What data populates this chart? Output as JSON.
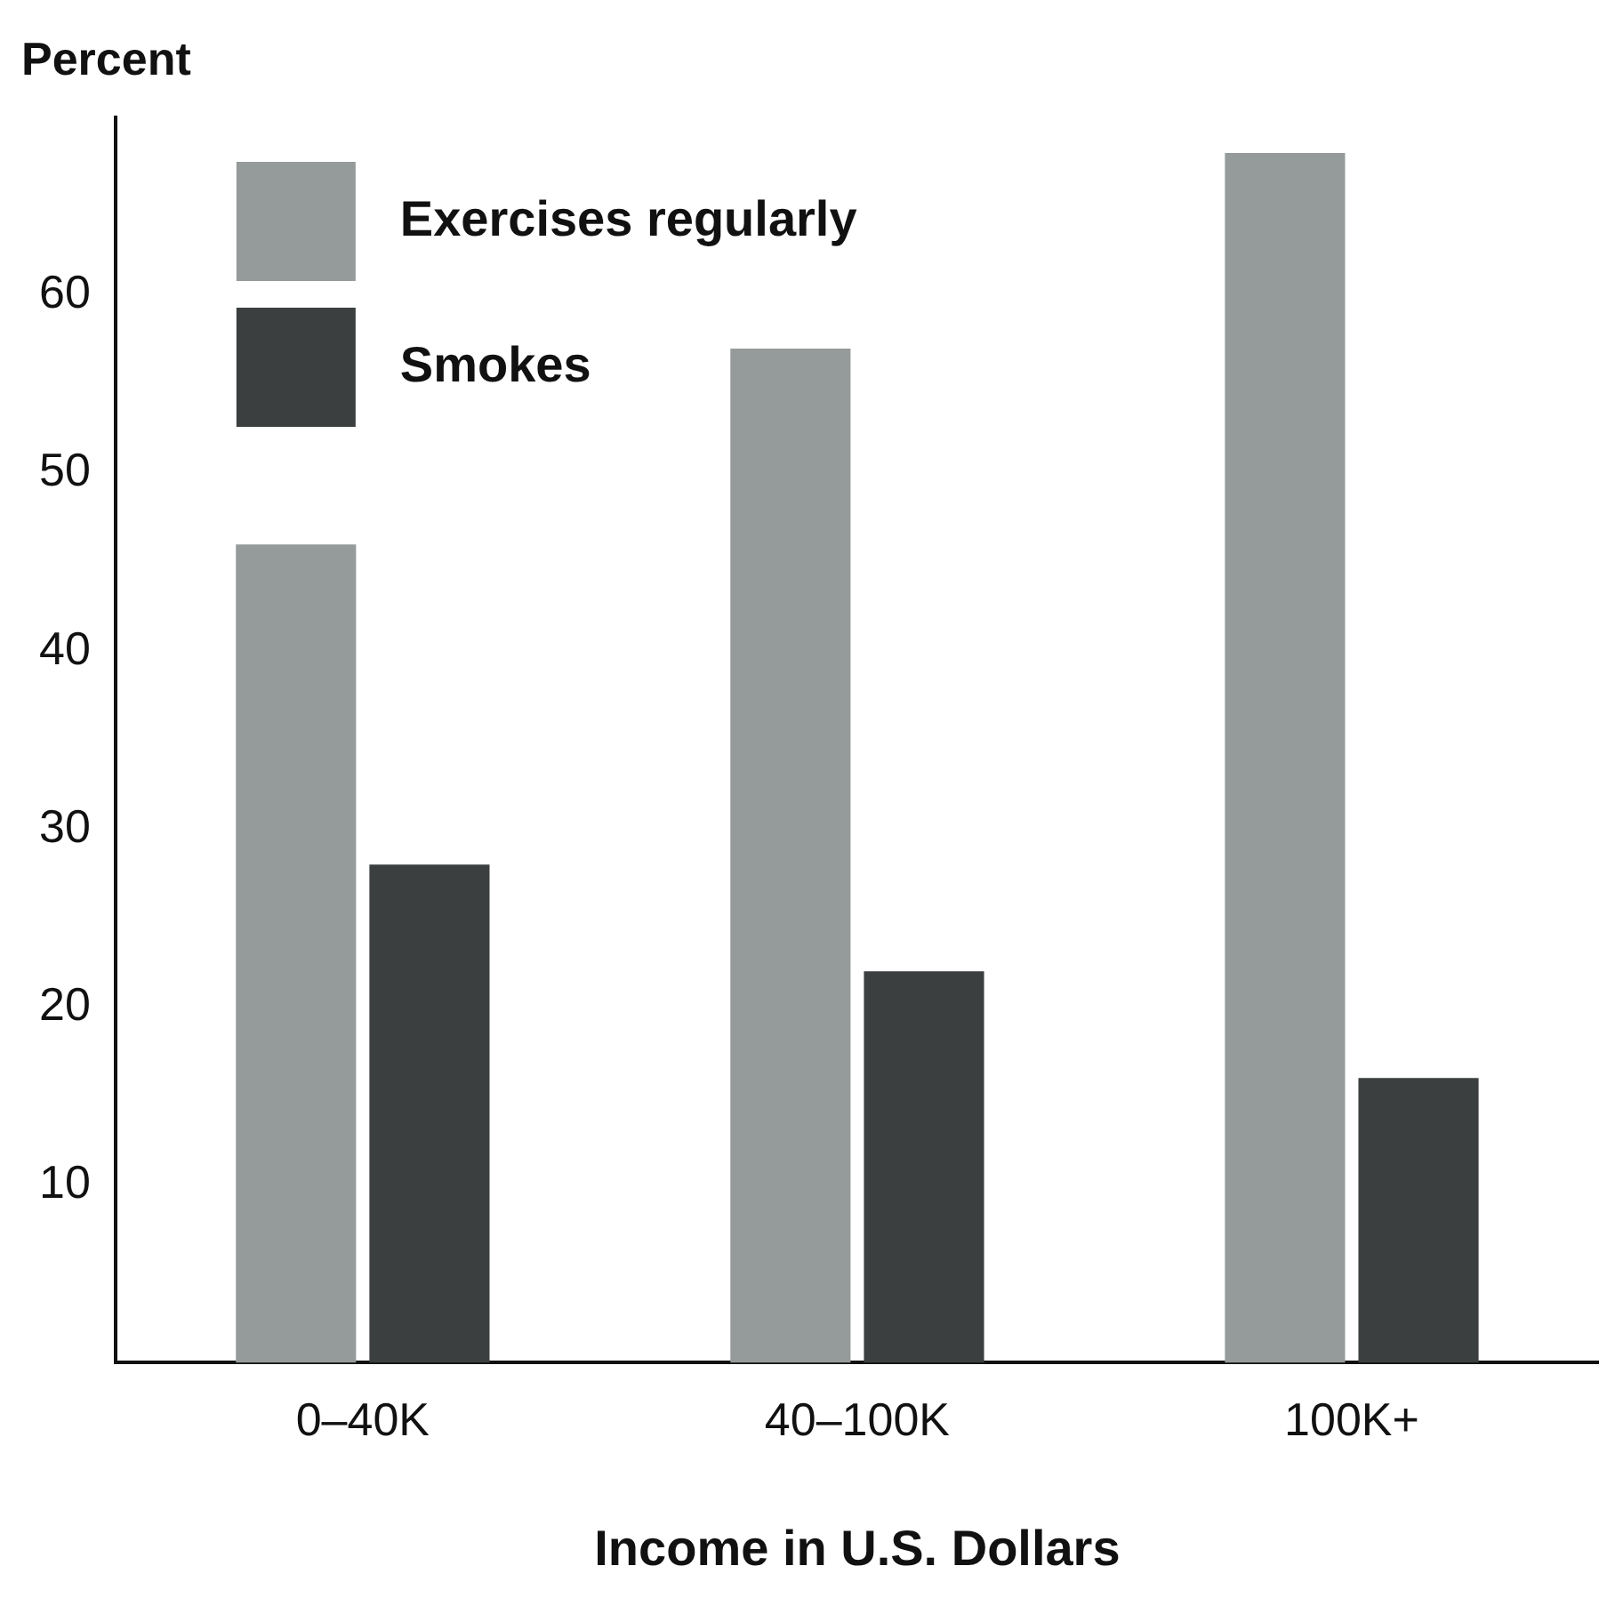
{
  "chart_data": {
    "type": "bar",
    "ylabel": "Percent",
    "xlabel": "Income in U.S. Dollars",
    "categories": [
      "0–40K",
      "40–100K",
      "100K+"
    ],
    "series": [
      {
        "name": "Exercises regularly",
        "color": "#959a9b",
        "values": [
          46,
          57,
          68
        ]
      },
      {
        "name": "Smokes",
        "color": "#3b3f40",
        "values": [
          28,
          22,
          16
        ]
      }
    ],
    "ylim": [
      0,
      70
    ],
    "yticks": [
      10,
      20,
      30,
      40,
      50,
      60
    ],
    "grid": false,
    "legend": "top left"
  }
}
